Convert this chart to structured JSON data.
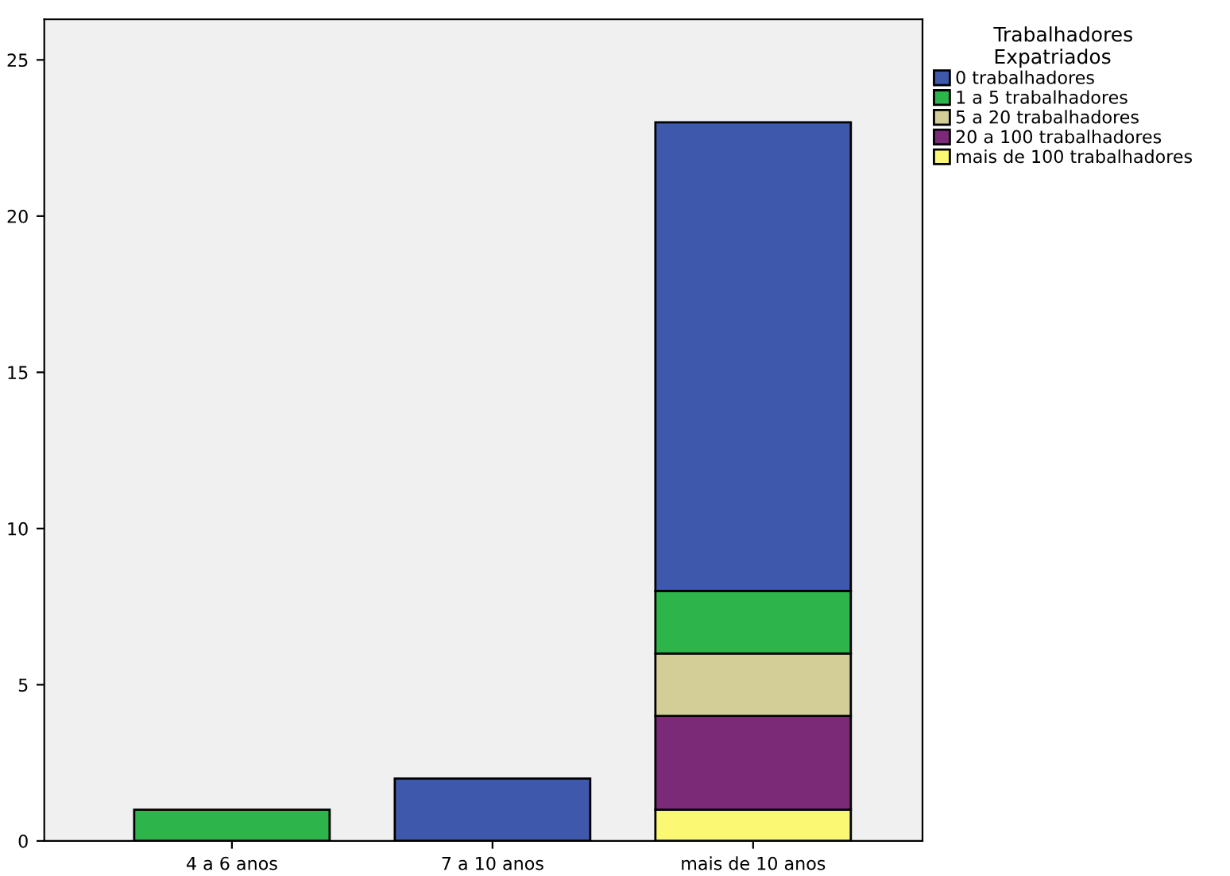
{
  "chart_data": {
    "type": "bar",
    "stacked": true,
    "categories": [
      "4 a 6 anos",
      "7 a 10 anos",
      "mais de 10 anos"
    ],
    "legend_title": "Trabalhadores\nExpatriados",
    "legend": "right",
    "grid": false,
    "ylim": [
      0,
      26.3
    ],
    "yticks": [
      0,
      5,
      10,
      15,
      20,
      25
    ],
    "series": [
      {
        "name": "mais de 100 trabalhadores",
        "color": "#fbf873",
        "values": [
          null,
          null,
          1
        ]
      },
      {
        "name": "20 a 100 trabalhadores",
        "color": "#7b2a78",
        "values": [
          null,
          null,
          3
        ]
      },
      {
        "name": "5 a 20 trabalhadores",
        "color": "#d3ce97",
        "values": [
          null,
          null,
          2
        ]
      },
      {
        "name": "1 a 5 trabalhadores",
        "color": "#2db44a",
        "values": [
          1,
          null,
          2
        ]
      },
      {
        "name": "0 trabalhadores",
        "color": "#3e58ac",
        "values": [
          null,
          2,
          15
        ]
      }
    ]
  }
}
